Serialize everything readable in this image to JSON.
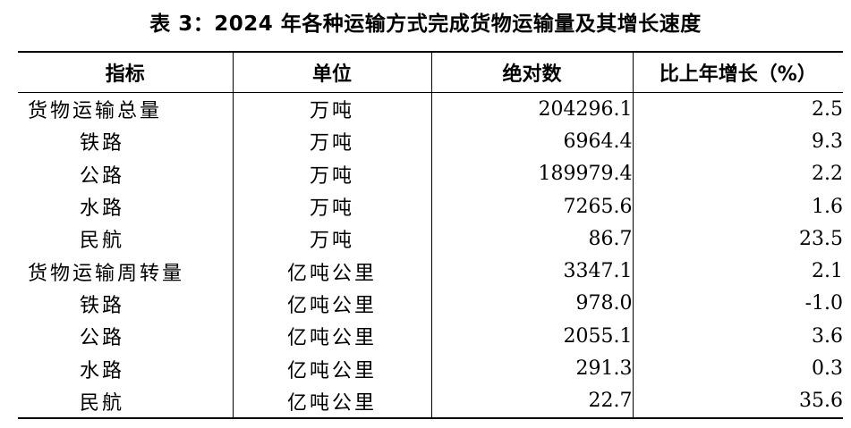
{
  "title": "表 3：2024 年各种运输方式完成货物运输量及其增长速度",
  "table": {
    "headers": [
      "指标",
      "单位",
      "绝对数",
      "比上年增长（%）"
    ],
    "rows": [
      {
        "indicator": "货物运输总量",
        "unit": "万吨",
        "absolute": "204296.1",
        "growth": "2.5",
        "level": "total"
      },
      {
        "indicator": "铁路",
        "unit": "万吨",
        "absolute": "6964.4",
        "growth": "9.3",
        "level": "sub"
      },
      {
        "indicator": "公路",
        "unit": "万吨",
        "absolute": "189979.4",
        "growth": "2.2",
        "level": "sub"
      },
      {
        "indicator": "水路",
        "unit": "万吨",
        "absolute": "7265.6",
        "growth": "1.6",
        "level": "sub"
      },
      {
        "indicator": "民航",
        "unit": "万吨",
        "absolute": "86.7",
        "growth": "23.5",
        "level": "sub"
      },
      {
        "indicator": "货物运输周转量",
        "unit": "亿吨公里",
        "absolute": "3347.1",
        "growth": "2.1",
        "level": "total"
      },
      {
        "indicator": "铁路",
        "unit": "亿吨公里",
        "absolute": "978.0",
        "growth": "-1.0",
        "level": "sub"
      },
      {
        "indicator": "公路",
        "unit": "亿吨公里",
        "absolute": "2055.1",
        "growth": "3.6",
        "level": "sub"
      },
      {
        "indicator": "水路",
        "unit": "亿吨公里",
        "absolute": "291.3",
        "growth": "0.3",
        "level": "sub"
      },
      {
        "indicator": "民航",
        "unit": "亿吨公里",
        "absolute": "22.7",
        "growth": "35.6",
        "level": "sub"
      }
    ]
  }
}
